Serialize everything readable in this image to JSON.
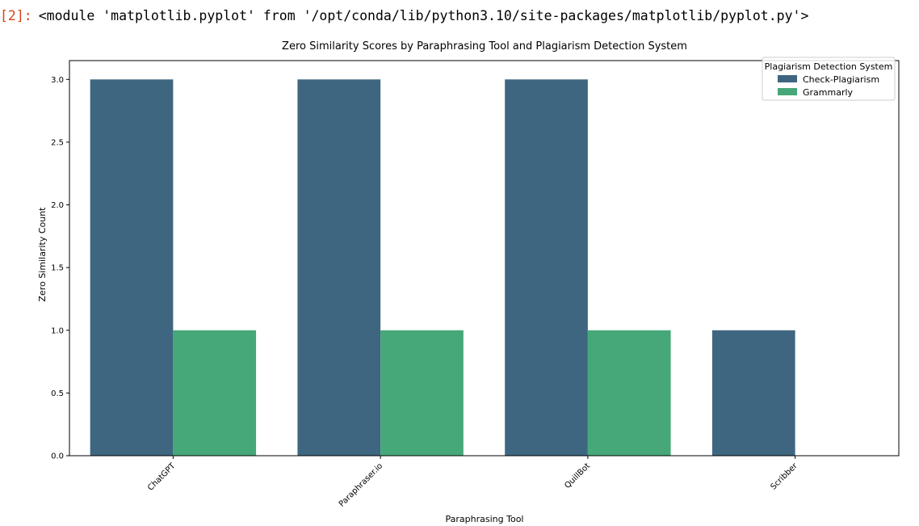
{
  "cell": {
    "prompt": "[2]:",
    "output_text": "<module 'matplotlib.pyplot' from '/opt/conda/lib/python3.10/site-packages/matplotlib/pyplot.py'>"
  },
  "chart_data": {
    "type": "bar",
    "title": "Zero Similarity Scores by Paraphrasing Tool and Plagiarism Detection System",
    "xlabel": "Paraphrasing Tool",
    "ylabel": "Zero Similarity Count",
    "categories": [
      "ChatGPT",
      "Paraphraser.io",
      "QuillBot",
      "Scribber"
    ],
    "series": [
      {
        "name": "Check-Plagiarism",
        "color": "#3e6680",
        "values": [
          3.0,
          3.0,
          3.0,
          1.0
        ]
      },
      {
        "name": "Grammarly",
        "color": "#46a878",
        "values": [
          1.0,
          1.0,
          1.0,
          0.0
        ]
      }
    ],
    "ylim": [
      0,
      3.15
    ],
    "yticks": [
      0.0,
      0.5,
      1.0,
      1.5,
      2.0,
      2.5,
      3.0
    ],
    "ytick_labels": [
      "0.0",
      "0.5",
      "1.0",
      "1.5",
      "2.0",
      "2.5",
      "3.0"
    ],
    "legend": {
      "title": "Plagiarism Detection System",
      "placement": "top-right"
    },
    "grid": false
  }
}
